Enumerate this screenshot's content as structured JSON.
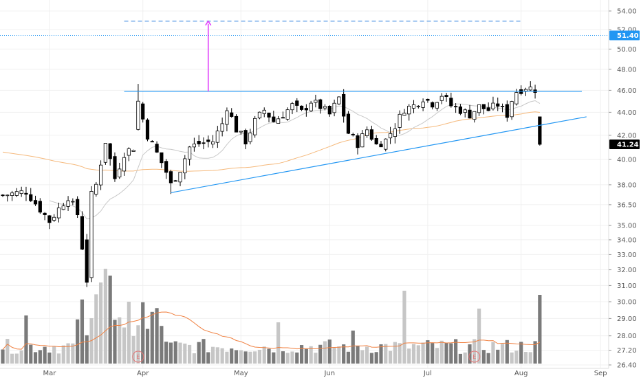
{
  "chart_data": {
    "type": "candlestick",
    "title": "",
    "xlabel": "",
    "ylabel": "",
    "y_scale": "log",
    "ylim": [
      26.0,
      55.5
    ],
    "grid": true,
    "x_tick_labels": [
      "Mar",
      "Apr",
      "May",
      "Jun",
      "Jul",
      "Aug",
      "Sep"
    ],
    "y_tick_values": [
      26.4,
      27.2,
      28.0,
      29.0,
      30.0,
      31.0,
      32.0,
      33.0,
      34.0,
      35.0,
      36.5,
      38.0,
      40.0,
      42.0,
      44.0,
      46.0,
      48.0,
      50.0,
      52.0,
      54.0
    ],
    "y_tick_labels": [
      "26.40",
      "27.20",
      "28.00",
      "29.00",
      "30.00",
      "31.00",
      "32.00",
      "33.00",
      "34.00",
      "35.00",
      "36.50",
      "38.00",
      "40.00",
      "42.00",
      "44.00",
      "46.00",
      "48.00",
      "50.00",
      "52.00",
      "54.00"
    ],
    "price_badges": [
      {
        "label": "51.40",
        "value": 51.4,
        "color": "#2196f3"
      },
      {
        "label": "41.24",
        "value": 41.24,
        "color": "#000000"
      }
    ],
    "earnings_markers": [
      {
        "label": "E",
        "month": "Apr"
      },
      {
        "label": "E",
        "month": "Jul"
      }
    ],
    "annotations": [
      {
        "type": "horizontal",
        "name": "resistance",
        "value": 45.9,
        "color": "#2196f3"
      },
      {
        "type": "trendline",
        "name": "support",
        "from": 37.4,
        "to": 43.6,
        "color": "#2196f3"
      },
      {
        "type": "dashed",
        "name": "target",
        "value": 52.9,
        "color": "#4a90e2"
      },
      {
        "type": "dotted",
        "name": "current-level",
        "value": 51.4,
        "color": "#2196f3"
      },
      {
        "type": "arrow",
        "name": "measured-move",
        "from": 45.9,
        "to": 52.9,
        "color": "#e040fb"
      }
    ],
    "series": [
      {
        "name": "",
        "kind": "ohlc",
        "note": "daily candles, generated procedurally in script to match the visible price path"
      },
      {
        "name": "",
        "kind": "sma",
        "color": "#f5b87a"
      },
      {
        "name": "",
        "kind": "sma",
        "color": "#c8c8c8"
      },
      {
        "name": "",
        "kind": "volume",
        "color": "#777777"
      },
      {
        "name": "",
        "kind": "volume-ma",
        "color": "#f08040"
      }
    ]
  },
  "colors": {
    "up_body": "#ffffff",
    "down_body": "#000000",
    "wick": "#000000",
    "grid": "#f0f0f0",
    "axis_border": "#dddddd",
    "volume_up": "#c6c6c6",
    "volume_down": "#7a7a7a"
  }
}
